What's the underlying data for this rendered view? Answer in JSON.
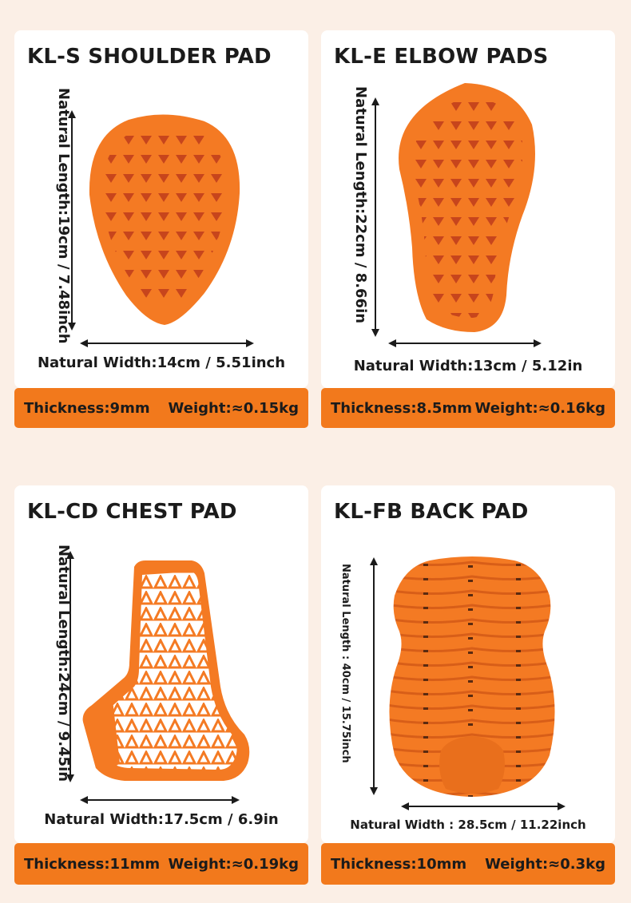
{
  "colors": {
    "background": "#fbefe6",
    "card": "#ffffff",
    "accent": "#f2791c",
    "pad_orange": "#f47a23",
    "text": "#1b1b1b"
  },
  "products": [
    {
      "title": "KL-S SHOULDER PAD",
      "length": "Natural Length:19cm / 7.48inch",
      "width": "Natural Width:14cm / 5.51inch",
      "thickness": "Thickness:9mm",
      "weight": "Weight:≈0.15kg"
    },
    {
      "title": "KL-E ELBOW PADS",
      "length": "Natural Length:22cm / 8.66in",
      "width": "Natural Width:13cm / 5.12in",
      "thickness": "Thickness:8.5mm",
      "weight": "Weight:≈0.16kg"
    },
    {
      "title": "KL-CD CHEST PAD",
      "length": "Natural Length:24cm / 9.45in",
      "width": "Natural Width:17.5cm / 6.9in",
      "thickness": "Thickness:11mm",
      "weight": "Weight:≈0.19kg"
    },
    {
      "title": "KL-FB BACK PAD",
      "length": "Natural Length : 40cm / 15.75inch",
      "width": "Natural Width : 28.5cm / 11.22inch",
      "thickness": "Thickness:10mm",
      "weight": "Weight:≈0.3kg"
    }
  ]
}
